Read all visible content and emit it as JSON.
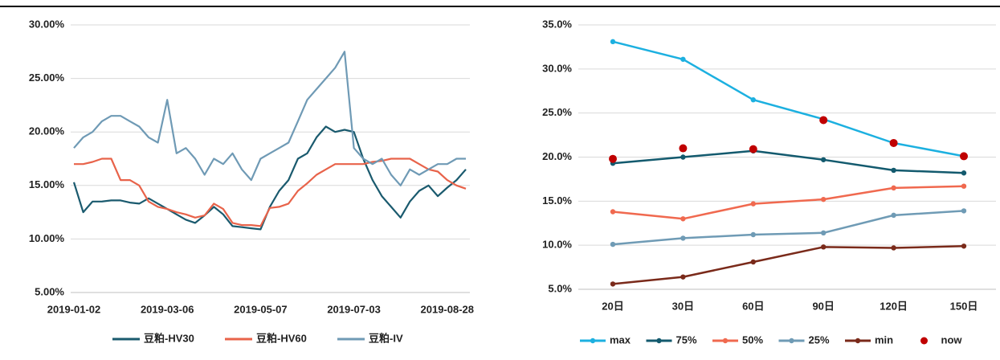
{
  "chart_data": [
    {
      "type": "line",
      "categories": [
        "2019-01-02",
        null,
        null,
        null,
        null,
        null,
        null,
        null,
        null,
        null,
        "2019-03-06",
        null,
        null,
        null,
        null,
        null,
        null,
        null,
        null,
        null,
        "2019-05-07",
        null,
        null,
        null,
        null,
        null,
        null,
        null,
        null,
        null,
        "2019-07-03",
        null,
        null,
        null,
        null,
        null,
        null,
        null,
        null,
        null,
        "2019-08-28",
        null,
        null
      ],
      "ylim": [
        5,
        30
      ],
      "yticks": [
        {
          "value": 5,
          "label": "5.00%"
        },
        {
          "value": 10,
          "label": "10.00%"
        },
        {
          "value": 15,
          "label": "15.00%"
        },
        {
          "value": 20,
          "label": "20.00%"
        },
        {
          "value": 25,
          "label": "25.00%"
        },
        {
          "value": 30,
          "label": "30.00%"
        }
      ],
      "grid": true,
      "markers": false,
      "series": [
        {
          "name": "豆粕-HV30",
          "color": "#1a5a6e",
          "values": [
            15.3,
            12.5,
            13.5,
            13.5,
            13.6,
            13.6,
            13.4,
            13.3,
            13.8,
            13.3,
            12.8,
            12.3,
            11.8,
            11.5,
            12.2,
            13.0,
            12.3,
            11.2,
            11.1,
            11.0,
            10.9,
            13.0,
            14.5,
            15.5,
            17.5,
            18.0,
            19.5,
            20.5,
            20.0,
            20.2,
            20.0,
            17.5,
            15.5,
            14.0,
            13.0,
            12.0,
            13.5,
            14.5,
            15.0,
            14.0,
            14.8,
            15.5,
            16.5
          ]
        },
        {
          "name": "豆粕-HV60",
          "color": "#e8634a",
          "values": [
            17.0,
            17.0,
            17.2,
            17.5,
            17.5,
            15.5,
            15.5,
            15.0,
            13.5,
            13.0,
            12.8,
            12.5,
            12.3,
            12.0,
            12.2,
            13.3,
            12.8,
            11.5,
            11.3,
            11.3,
            11.2,
            12.9,
            13.0,
            13.3,
            14.5,
            15.2,
            16.0,
            16.5,
            17.0,
            17.0,
            17.0,
            17.0,
            17.2,
            17.3,
            17.5,
            17.5,
            17.5,
            17.0,
            16.5,
            16.3,
            15.5,
            15.0,
            14.7
          ]
        },
        {
          "name": "豆粕-IV",
          "color": "#6f9ab5",
          "values": [
            18.5,
            19.5,
            20.0,
            21.0,
            21.5,
            21.5,
            21.0,
            20.5,
            19.5,
            19.0,
            23.0,
            18.0,
            18.5,
            17.5,
            16.0,
            17.5,
            17.0,
            18.0,
            16.5,
            15.5,
            17.5,
            18.0,
            18.5,
            19.0,
            21.0,
            23.0,
            24.0,
            25.0,
            26.0,
            27.5,
            18.5,
            17.5,
            17.0,
            17.5,
            16.0,
            15.0,
            16.5,
            16.0,
            16.5,
            17.0,
            17.0,
            17.5,
            17.5
          ]
        }
      ]
    },
    {
      "type": "line",
      "categories": [
        "20日",
        "30日",
        "60日",
        "90日",
        "120日",
        "150日"
      ],
      "ylim": [
        5,
        35
      ],
      "yticks": [
        {
          "value": 5,
          "label": "5.0%"
        },
        {
          "value": 10,
          "label": "10.0%"
        },
        {
          "value": 15,
          "label": "15.0%"
        },
        {
          "value": 20,
          "label": "20.0%"
        },
        {
          "value": 25,
          "label": "25.0%"
        },
        {
          "value": 30,
          "label": "30.0%"
        },
        {
          "value": 35,
          "label": "35.0%"
        }
      ],
      "grid": true,
      "markers": true,
      "series": [
        {
          "name": "max",
          "color": "#1cb0e0",
          "values": [
            33.1,
            31.1,
            26.5,
            24.3,
            21.6,
            20.1
          ]
        },
        {
          "name": "75%",
          "color": "#135a6e",
          "values": [
            19.3,
            20.0,
            20.7,
            19.7,
            18.5,
            18.2
          ]
        },
        {
          "name": "50%",
          "color": "#f0694f",
          "values": [
            13.8,
            13.0,
            14.7,
            15.2,
            16.5,
            16.7
          ]
        },
        {
          "name": "25%",
          "color": "#6f9bb5",
          "values": [
            10.1,
            10.8,
            11.2,
            11.4,
            13.4,
            13.9
          ]
        },
        {
          "name": "min",
          "color": "#7a2a1a",
          "values": [
            5.6,
            6.4,
            8.1,
            9.8,
            9.7,
            9.9
          ]
        },
        {
          "name": "now",
          "color": "#c00000",
          "marker_only": true,
          "values": [
            19.8,
            21.0,
            20.9,
            24.2,
            21.6,
            20.1
          ]
        }
      ]
    }
  ]
}
